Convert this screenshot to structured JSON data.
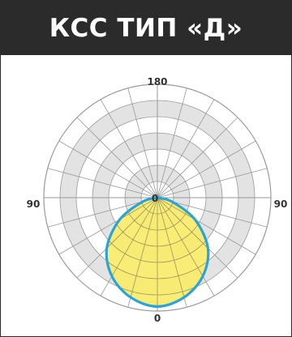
{
  "header": {
    "title": "КСС ТИП «Д»"
  },
  "diagram": {
    "labels": {
      "top": "180",
      "left": "90",
      "right": "90",
      "bottom": "0",
      "center": "0"
    },
    "ring_count": 7,
    "angular_step_deg": 15,
    "shaded_rings": [
      2,
      4,
      6
    ],
    "curve": {
      "type": "polar-luminous-intensity",
      "orientation": "downward",
      "angles_deg": [
        0,
        15,
        30,
        45,
        60,
        75,
        90
      ],
      "relative_radius": [
        0.96,
        0.91,
        0.8,
        0.63,
        0.38,
        0.13,
        0.0
      ]
    },
    "colors": {
      "curve_fill": "#f8ec6a",
      "curve_stroke": "#2aa3d8",
      "shade": "#e3e3e3",
      "grid": "#9a9a9a",
      "header_bg": "#2b2b2b",
      "header_text": "#ffffff"
    }
  }
}
